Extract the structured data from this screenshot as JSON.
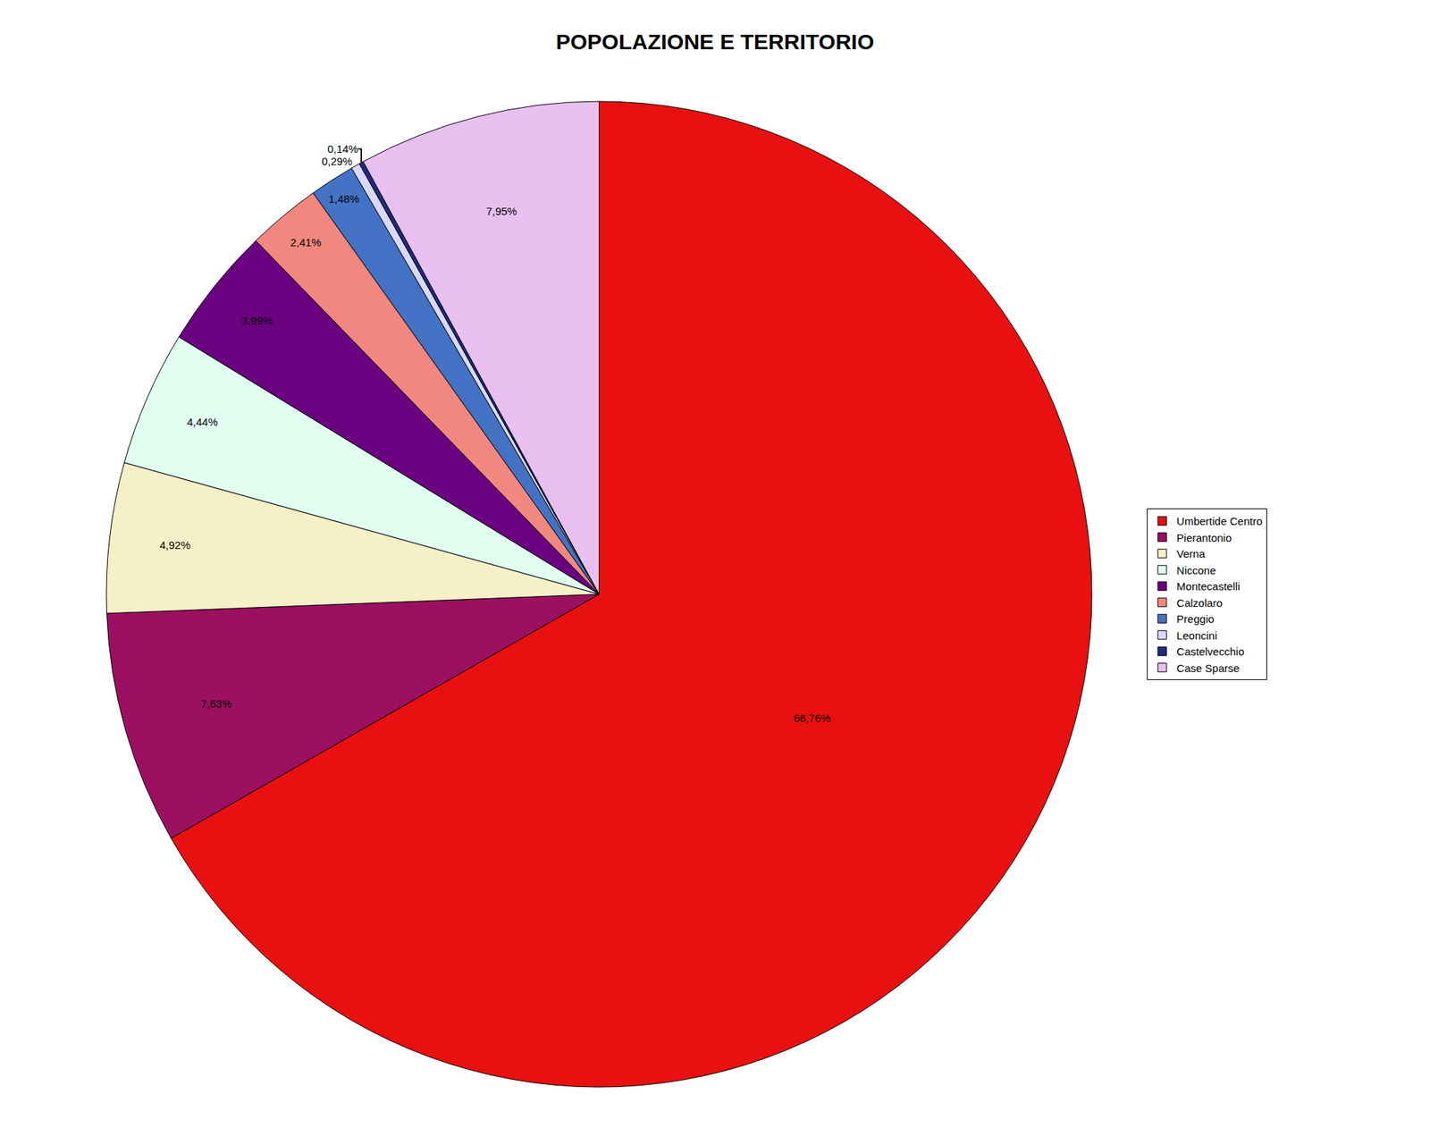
{
  "chart_data": {
    "type": "pie",
    "title": "POPOLAZIONE E TERRITORIO",
    "categories": [
      "Umbertide Centro",
      "Pierantonio",
      "Verna",
      "Niccone",
      "Montecastelli",
      "Calzolaro",
      "Preggio",
      "Leoncini",
      "Castelvecchio",
      "Case Sparse"
    ],
    "values": [
      66.76,
      7.63,
      4.92,
      4.44,
      3.99,
      2.41,
      1.48,
      0.29,
      0.14,
      7.95
    ],
    "value_labels": [
      "66,76%",
      "7,63%",
      "4,92%",
      "4,44%",
      "3,99%",
      "2,41%",
      "1,48%",
      "0,29%",
      "0,14%",
      "7,95%"
    ],
    "colors": [
      "#E81010",
      "#9B1060",
      "#F5F0C8",
      "#E0FFF0",
      "#6B0080",
      "#F08880",
      "#4472C4",
      "#D8D8FF",
      "#1F2A80",
      "#E8C0F0"
    ],
    "data_labels": true,
    "legend": "right"
  }
}
